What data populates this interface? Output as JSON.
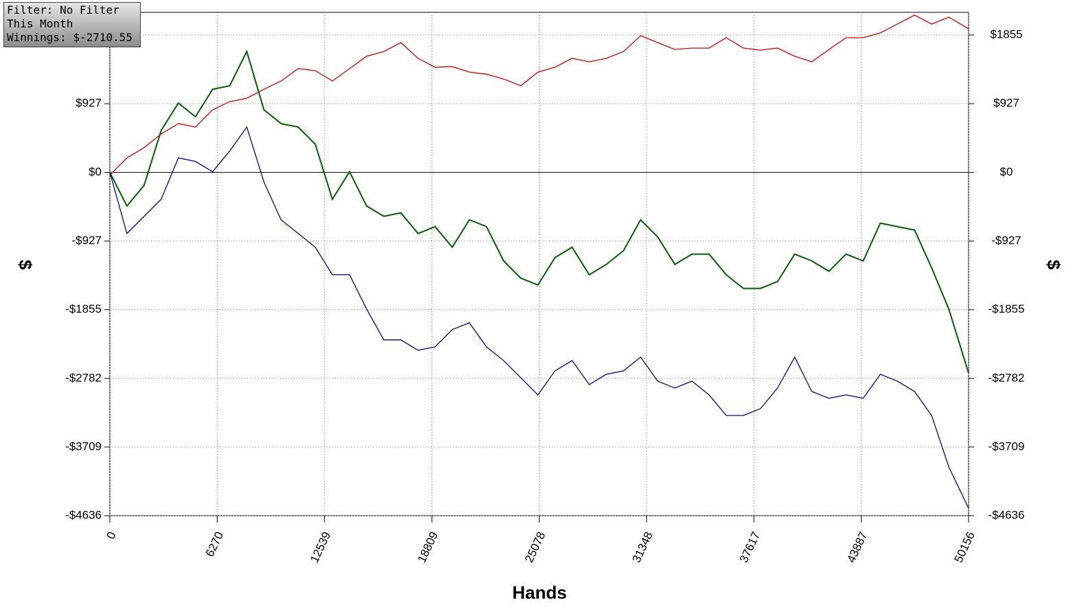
{
  "chart_data": {
    "type": "line",
    "annotations": [
      "Filter: No Filter",
      "This Month",
      "Winnings: $-2710.55"
    ],
    "xlabel": "Hands",
    "ylabel": "$",
    "y2label": "$",
    "x": [
      0,
      1000,
      2000,
      3000,
      4000,
      5000,
      6000,
      7000,
      8000,
      9000,
      10000,
      11000,
      12000,
      13000,
      14000,
      15000,
      16000,
      17000,
      18000,
      19000,
      20000,
      21000,
      22000,
      23000,
      24000,
      25000,
      26000,
      27000,
      28000,
      29000,
      30000,
      31000,
      32000,
      33000,
      34000,
      35000,
      36000,
      37000,
      38000,
      39000,
      40000,
      41000,
      42000,
      43000,
      44000,
      45000,
      46000,
      47000,
      48000,
      49000,
      50156
    ],
    "series": [
      {
        "color": "#e00000",
        "values": [
          -37,
          195,
          334,
          519,
          659,
          612,
          844,
          955,
          1002,
          1122,
          1234,
          1401,
          1373,
          1234,
          1401,
          1568,
          1632,
          1753,
          1540,
          1419,
          1428,
          1354,
          1326,
          1261,
          1169,
          1354,
          1419,
          1540,
          1493,
          1540,
          1632,
          1846,
          1753,
          1660,
          1679,
          1679,
          1818,
          1679,
          1651,
          1679,
          1568,
          1493,
          1660,
          1818,
          1818,
          1883,
          2003,
          2124,
          2003,
          2096,
          1938
        ]
      },
      {
        "color": "#006000",
        "values": [
          0,
          -454,
          -176,
          566,
          937,
          751,
          1122,
          1169,
          1632,
          844,
          659,
          612,
          380,
          -362,
          9,
          -454,
          -594,
          -547,
          -825,
          -733,
          -1011,
          -640,
          -733,
          -1196,
          -1428,
          -1521,
          -1150,
          -1011,
          -1382,
          -1243,
          -1057,
          -640,
          -872,
          -1243,
          -1104,
          -1104,
          -1382,
          -1567,
          -1567,
          -1475,
          -1104,
          -1196,
          -1336,
          -1104,
          -1196,
          -686,
          -733,
          -779,
          -1289,
          -1846,
          -2711
        ]
      },
      {
        "color": "#0000b0",
        "values": [
          0,
          -825,
          -594,
          -362,
          195,
          148,
          9,
          288,
          612,
          -130,
          -640,
          -825,
          -1011,
          -1382,
          -1382,
          -1846,
          -2263,
          -2263,
          -2402,
          -2356,
          -2124,
          -2031,
          -2356,
          -2541,
          -2773,
          -3005,
          -2680,
          -2541,
          -2866,
          -2727,
          -2680,
          -2495,
          -2819,
          -2912,
          -2819,
          -3005,
          -3283,
          -3283,
          -3191,
          -2912,
          -2495,
          -2959,
          -3051,
          -3005,
          -3051,
          -2727,
          -2819,
          -2959,
          -3283,
          -3979,
          -4535
        ]
      }
    ],
    "xlim": [
      0,
      50156
    ],
    "xticks": [
      0,
      6270,
      12539,
      18809,
      25078,
      31348,
      37617,
      43887,
      50156
    ],
    "ylim": [
      -4636,
      2161
    ],
    "yticks": [
      {
        "value": -4636,
        "label": "-$4636"
      },
      {
        "value": -3709,
        "label": "-$3709"
      },
      {
        "value": -2782,
        "label": "-$2782"
      },
      {
        "value": -1855,
        "label": "-$1855"
      },
      {
        "value": -927,
        "label": "-$927"
      },
      {
        "value": 0,
        "label": "$0"
      },
      {
        "value": 927,
        "label": "$927"
      },
      {
        "value": 1855,
        "label": "$1855"
      }
    ],
    "y2lim": [
      -4636,
      2161
    ],
    "y2ticks": [
      {
        "value": -4636,
        "label": "-$4636"
      },
      {
        "value": -3709,
        "label": "-$3709"
      },
      {
        "value": -2782,
        "label": "-$2782"
      },
      {
        "value": -1855,
        "label": "-$1855"
      },
      {
        "value": -927,
        "label": "-$927"
      },
      {
        "value": 0,
        "label": "$0"
      },
      {
        "value": 927,
        "label": "$927"
      },
      {
        "value": 1855,
        "label": "$1855"
      }
    ],
    "grid": true
  }
}
